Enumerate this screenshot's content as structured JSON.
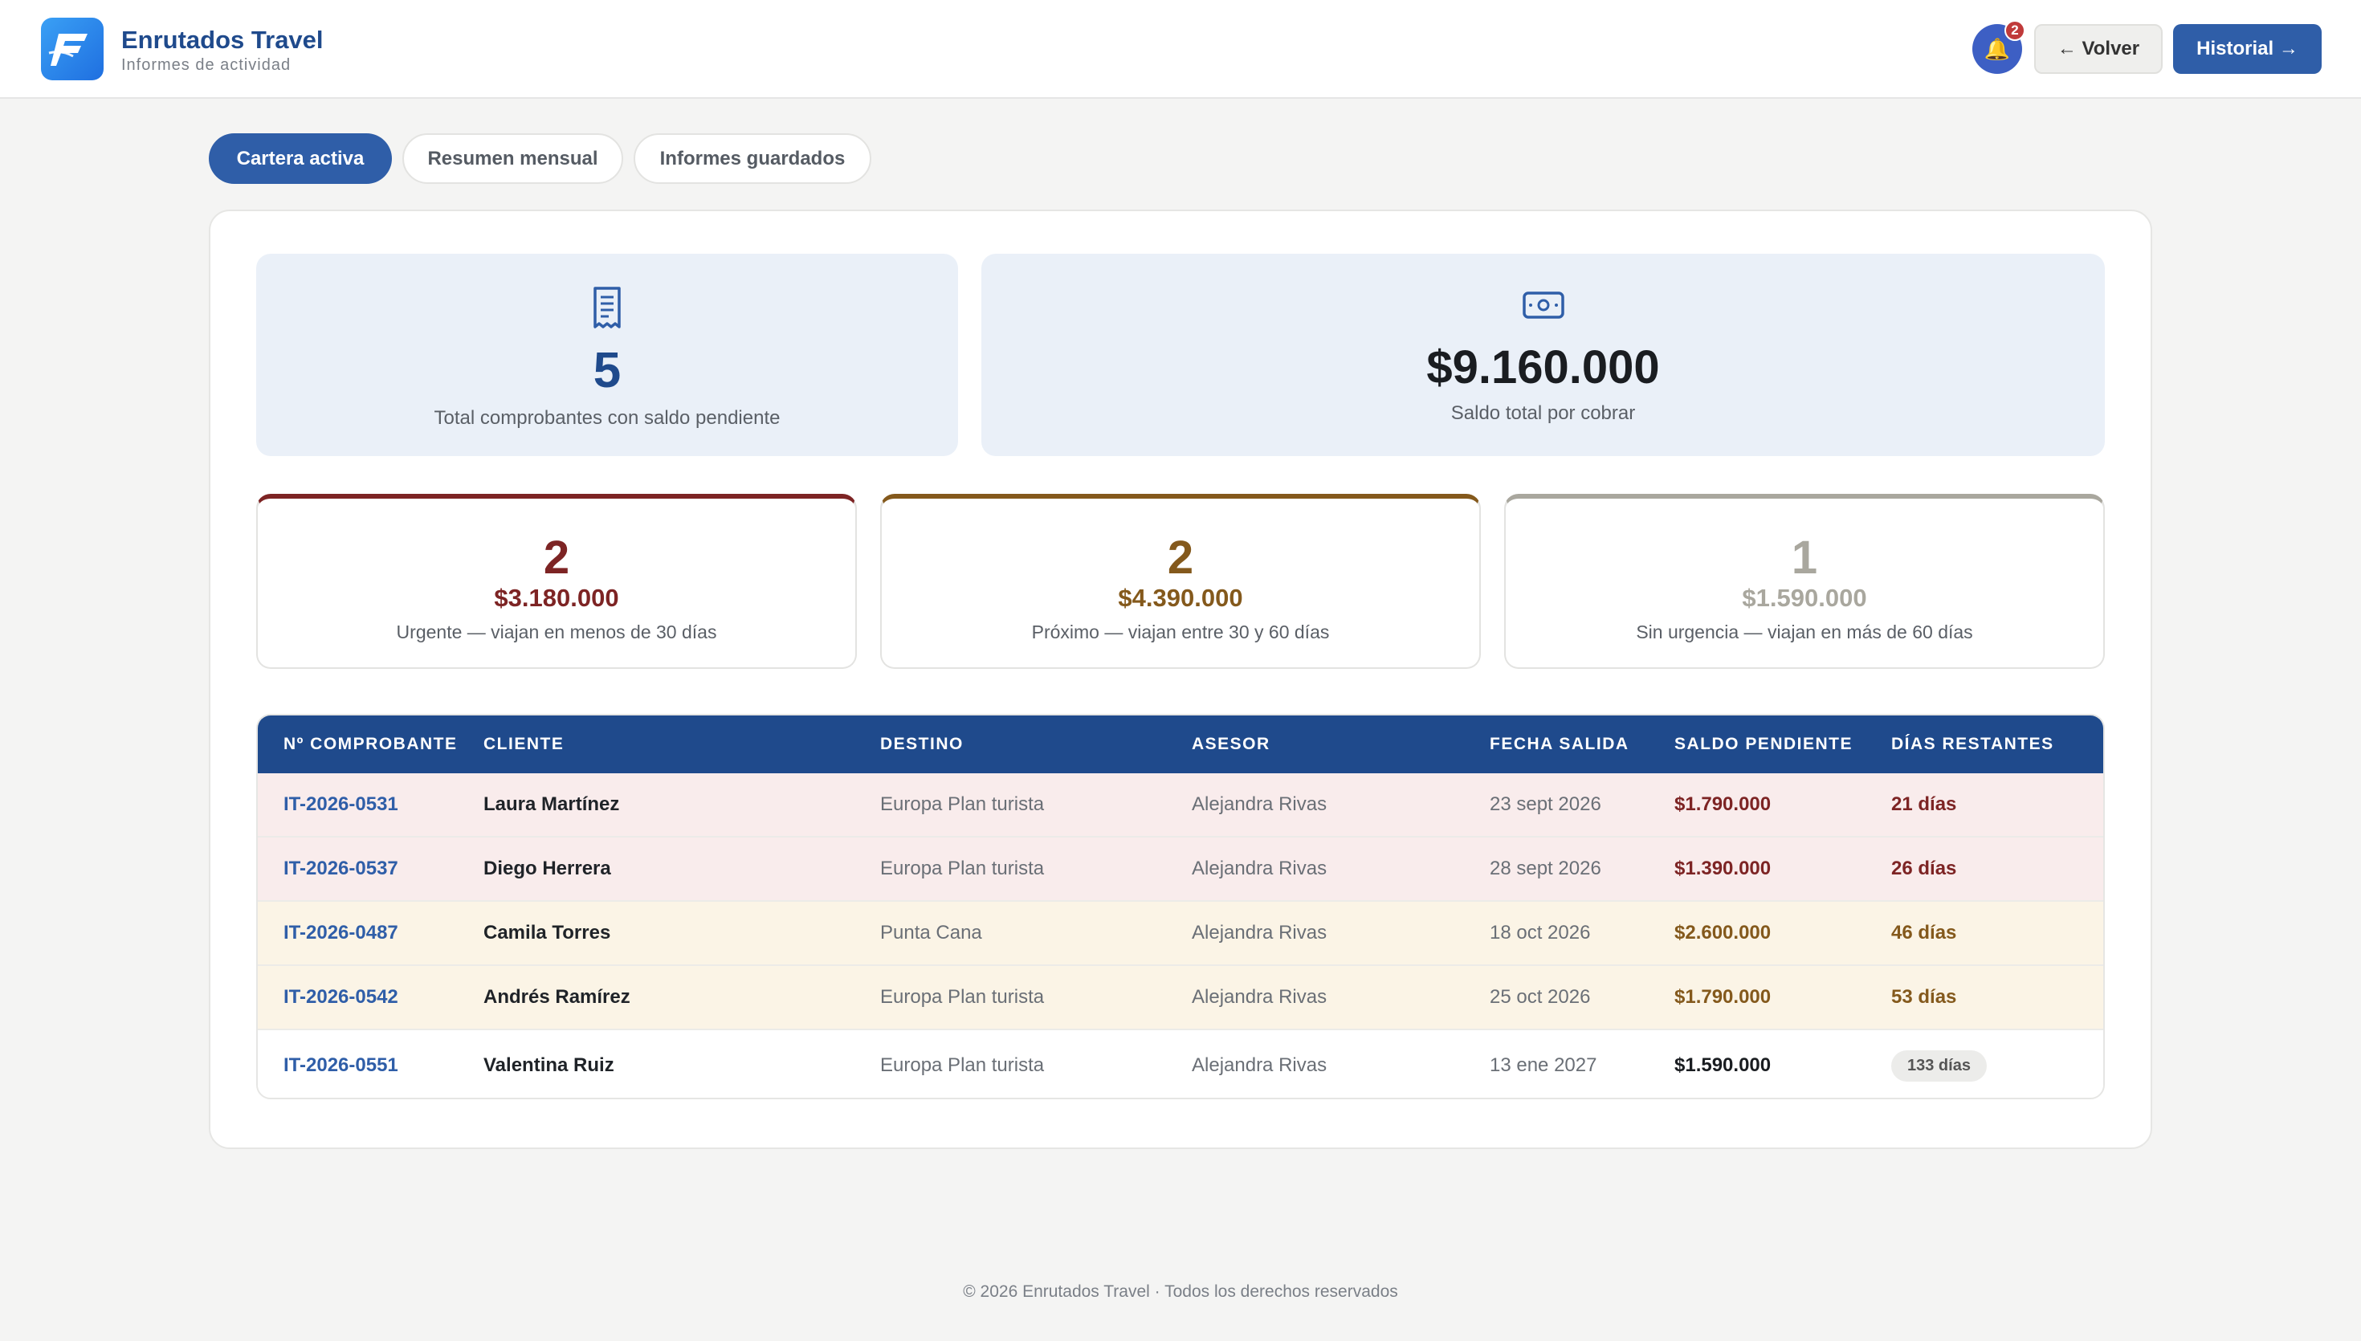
{
  "header": {
    "brand_name": "Enrutados Travel",
    "brand_subtitle": "Informes de actividad",
    "notification_count": "2",
    "back_label": "← Volver",
    "history_label": "Historial →"
  },
  "tabs": [
    {
      "label": "Cartera activa",
      "active": true
    },
    {
      "label": "Resumen mensual",
      "active": false
    },
    {
      "label": "Informes guardados",
      "active": false
    }
  ],
  "summary": {
    "vouchers": {
      "value": "5",
      "label": "Total comprobantes con saldo pendiente",
      "icon": "receipt-icon"
    },
    "balance": {
      "value": "$9.160.000",
      "label": "Saldo total por cobrar",
      "icon": "cash-icon"
    }
  },
  "tiers": [
    {
      "count": "2",
      "amount": "$3.180.000",
      "label": "Urgente — viajan en menos de 30 días",
      "color": "#7d2424"
    },
    {
      "count": "2",
      "amount": "$4.390.000",
      "label": "Próximo — viajan entre 30 y 60 días",
      "color": "#84591c"
    },
    {
      "count": "1",
      "amount": "$1.590.000",
      "label": "Sin urgencia — viajan en más de 60 días",
      "color": "#a9a79e"
    }
  ],
  "table": {
    "headers": [
      "Nº COMPROBANTE",
      "CLIENTE",
      "DESTINO",
      "ASESOR",
      "FECHA SALIDA",
      "SALDO PENDIENTE",
      "DÍAS RESTANTES"
    ],
    "rows": [
      {
        "code": "IT-2026-0531",
        "client": "Laura Martínez",
        "destination": "Europa Plan turista",
        "advisor": "Alejandra Rivas",
        "departure": "23 sept 2026",
        "balance": "$1.790.000",
        "days": "21 días",
        "tier": "urgent"
      },
      {
        "code": "IT-2026-0537",
        "client": "Diego Herrera",
        "destination": "Europa Plan turista",
        "advisor": "Alejandra Rivas",
        "departure": "28 sept 2026",
        "balance": "$1.390.000",
        "days": "26 días",
        "tier": "urgent"
      },
      {
        "code": "IT-2026-0487",
        "client": "Camila Torres",
        "destination": "Punta Cana",
        "advisor": "Alejandra Rivas",
        "departure": "18 oct 2026",
        "balance": "$2.600.000",
        "days": "46 días",
        "tier": "soon"
      },
      {
        "code": "IT-2026-0542",
        "client": "Andrés Ramírez",
        "destination": "Europa Plan turista",
        "advisor": "Alejandra Rivas",
        "departure": "25 oct 2026",
        "balance": "$1.790.000",
        "days": "53 días",
        "tier": "soon"
      },
      {
        "code": "IT-2026-0551",
        "client": "Valentina Ruiz",
        "destination": "Europa Plan turista",
        "advisor": "Alejandra Rivas",
        "departure": "13 ene 2027",
        "balance": "$1.590.000",
        "days": "133 días",
        "tier": "later"
      }
    ]
  },
  "colors": {
    "primary": "#2f5ea8",
    "header_navy": "#1f4a8c",
    "urgent_bg": "#f9ecec",
    "soon_bg": "#fbf4e6",
    "urgent_text": "#7d2424",
    "soon_text": "#84591c"
  },
  "footer": {
    "text": "© 2026 Enrutados Travel · Todos los derechos reservados"
  }
}
